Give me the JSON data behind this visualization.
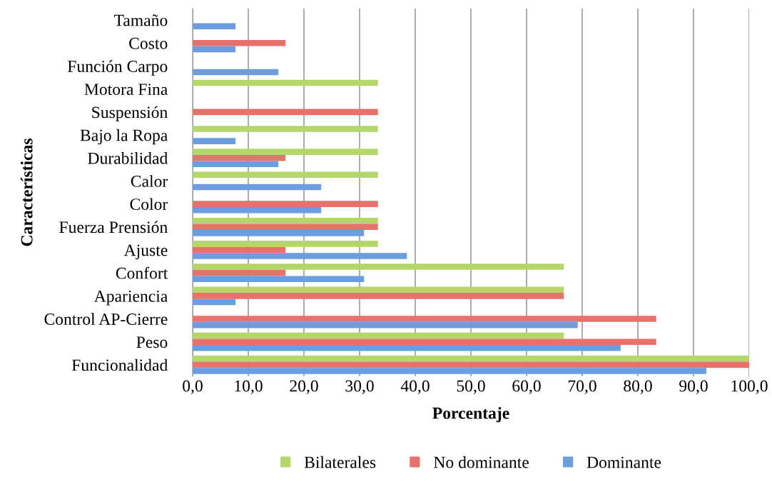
{
  "chart_data": {
    "type": "bar",
    "orientation": "horizontal",
    "xlabel": "Porcentaje",
    "ylabel": "Características",
    "categories": [
      "Tamaño",
      "Costo",
      "Función Carpo",
      "Motora Fina",
      "Suspensión",
      "Bajo la Ropa",
      "Durabilidad",
      "Calor",
      "Color",
      "Fuerza Prensión",
      "Ajuste",
      "Confort",
      "Apariencia",
      "Control AP-Cierre",
      "Peso",
      "Funcionalidad"
    ],
    "series": [
      {
        "name": "Bilaterales",
        "color": "#b4d76a",
        "values": [
          null,
          null,
          null,
          33.3,
          null,
          33.3,
          33.3,
          33.3,
          null,
          33.3,
          33.3,
          66.7,
          66.7,
          null,
          66.7,
          100
        ]
      },
      {
        "name": "No dominante",
        "color": "#e8716b",
        "values": [
          null,
          16.7,
          null,
          null,
          33.3,
          null,
          16.7,
          null,
          33.3,
          33.3,
          16.7,
          16.7,
          66.7,
          83.3,
          83.3,
          100
        ]
      },
      {
        "name": "Dominante",
        "color": "#6b9de0",
        "values": [
          7.7,
          7.7,
          15.4,
          null,
          null,
          7.7,
          15.4,
          23.1,
          23.1,
          30.8,
          38.5,
          30.8,
          7.7,
          69.2,
          76.9,
          92.3
        ]
      }
    ],
    "xlim": [
      0,
      100
    ],
    "xticks": [
      {
        "value": 0,
        "label": "0,0"
      },
      {
        "value": 10,
        "label": "10,0"
      },
      {
        "value": 20,
        "label": "20,0"
      },
      {
        "value": 30,
        "label": "30,0"
      },
      {
        "value": 40,
        "label": "40,0"
      },
      {
        "value": 50,
        "label": "50,0"
      },
      {
        "value": 60,
        "label": "60,0"
      },
      {
        "value": 70,
        "label": "70,0"
      },
      {
        "value": 80,
        "label": "80,0"
      },
      {
        "value": 90,
        "label": "90,0"
      },
      {
        "value": 100,
        "label": "100,0"
      }
    ],
    "grid": "x",
    "legend": "bottom"
  }
}
